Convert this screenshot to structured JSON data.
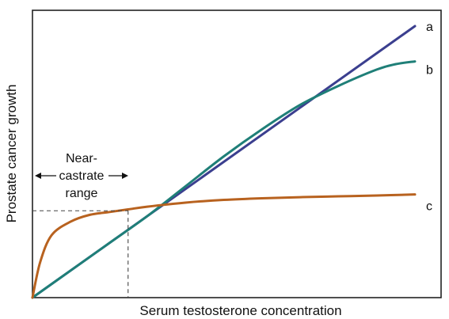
{
  "chart_data": {
    "type": "line",
    "title": "",
    "xlabel": "Serum testosterone concentration",
    "ylabel": "Prostate cancer growth",
    "xlim": [
      0,
      100
    ],
    "ylim": [
      0,
      100
    ],
    "grid": false,
    "annotation": {
      "lines": [
        "Near-",
        "castrate",
        "range"
      ],
      "x_range": [
        0,
        25
      ],
      "reference_y": 32
    },
    "series": [
      {
        "name": "a",
        "color": "#3b3f8f",
        "x": [
          0,
          100
        ],
        "y": [
          0,
          100
        ]
      },
      {
        "name": "b",
        "color": "#1f7f78",
        "x": [
          0,
          10,
          20,
          30,
          40,
          50,
          60,
          70,
          80,
          90,
          95,
          100
        ],
        "y": [
          0,
          10,
          20,
          30,
          41,
          52,
          62,
          71,
          78,
          84,
          86,
          87
        ]
      },
      {
        "name": "c",
        "color": "#b8621f",
        "x": [
          0,
          2,
          5,
          10,
          15,
          20,
          25,
          30,
          40,
          50,
          60,
          70,
          80,
          90,
          100
        ],
        "y": [
          0,
          13,
          23,
          28,
          30.5,
          31.5,
          32.5,
          33.5,
          35,
          36,
          36.6,
          37,
          37.3,
          37.6,
          38
        ]
      }
    ]
  }
}
